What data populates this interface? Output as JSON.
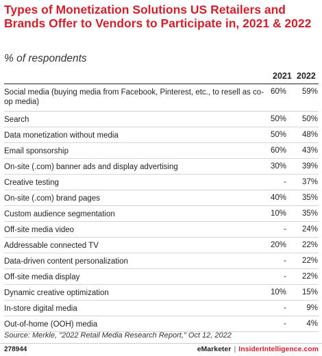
{
  "chart_data": {
    "type": "table",
    "title": "Types of Monetization Solutions US Retailers and Brands Offer to Vendors to Participate in, 2021 & 2022",
    "subtitle": "% of respondents",
    "columns": [
      "2021",
      "2022"
    ],
    "rows": [
      {
        "label": "Social media (buying media from Facebook, Pinterest, etc., to resell as co-op media)",
        "v2021": "60%",
        "v2022": "59%"
      },
      {
        "label": "Search",
        "v2021": "50%",
        "v2022": "50%"
      },
      {
        "label": "Data monetization without media",
        "v2021": "50%",
        "v2022": "48%"
      },
      {
        "label": "Email sponsorship",
        "v2021": "60%",
        "v2022": "43%"
      },
      {
        "label": "On-site (.com) banner ads and display advertising",
        "v2021": "30%",
        "v2022": "39%"
      },
      {
        "label": "Creative testing",
        "v2021": "-",
        "v2022": "37%"
      },
      {
        "label": "On-site (.com) brand pages",
        "v2021": "40%",
        "v2022": "35%"
      },
      {
        "label": "Custom audience segmentation",
        "v2021": "10%",
        "v2022": "35%"
      },
      {
        "label": "Off-site media video",
        "v2021": "-",
        "v2022": "24%"
      },
      {
        "label": "Addressable connected TV",
        "v2021": "20%",
        "v2022": "22%"
      },
      {
        "label": "Data-driven content personalization",
        "v2021": "-",
        "v2022": "22%"
      },
      {
        "label": "Off-site media display",
        "v2021": "-",
        "v2022": "22%"
      },
      {
        "label": "Dynamic creative optimization",
        "v2021": "10%",
        "v2022": "15%"
      },
      {
        "label": "In-store digital media",
        "v2021": "-",
        "v2022": "9%"
      },
      {
        "label": "Out-of-home (OOH) media",
        "v2021": "-",
        "v2022": "4%"
      }
    ],
    "source": "Source: Merkle, \"2022 Retail Media Research Report,\" Oct 12, 2022"
  },
  "footer": {
    "id": "278944",
    "brand_left": "eMarketer",
    "separator": "|",
    "brand_right": "InsiderIntelligence.com"
  },
  "colors": {
    "title": "#d0202c",
    "brand_accent": "#d0202c"
  }
}
